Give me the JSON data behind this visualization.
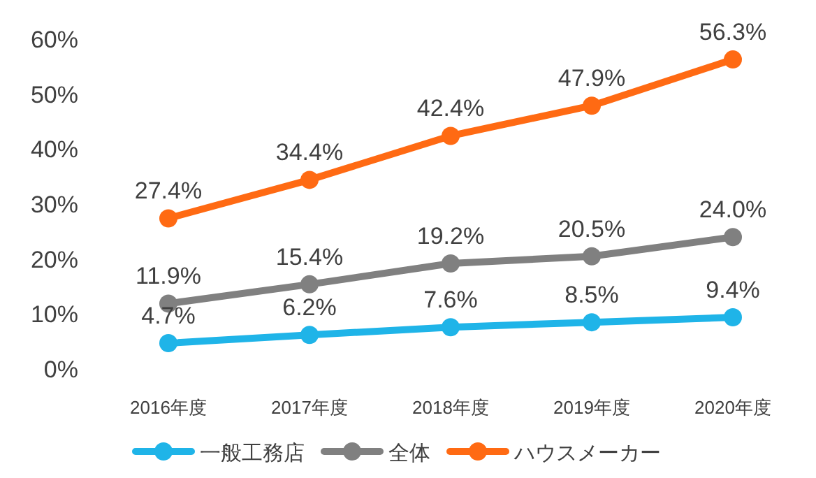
{
  "chart_data": {
    "type": "line",
    "categories": [
      "2016年度",
      "2017年度",
      "2018年度",
      "2019年度",
      "2020年度"
    ],
    "series": [
      {
        "name": "一般工務店",
        "color": "#1fb4e8",
        "values": [
          4.7,
          6.2,
          7.6,
          8.5,
          9.4
        ],
        "value_labels": [
          "4.7%",
          "6.2%",
          "7.6%",
          "8.5%",
          "9.4%"
        ]
      },
      {
        "name": "全体",
        "color": "#808080",
        "values": [
          11.9,
          15.4,
          19.2,
          20.5,
          24.0
        ],
        "value_labels": [
          "11.9%",
          "15.4%",
          "19.2%",
          "20.5%",
          "24.0%"
        ]
      },
      {
        "name": "ハウスメーカー",
        "color": "#ff6a13",
        "values": [
          27.4,
          34.4,
          42.4,
          47.9,
          56.3
        ],
        "value_labels": [
          "27.4%",
          "34.4%",
          "42.4%",
          "47.9%",
          "56.3%"
        ]
      }
    ],
    "ylim": [
      0,
      60
    ],
    "yticks": [
      {
        "value": 0,
        "label": "0%"
      },
      {
        "value": 10,
        "label": "10%"
      },
      {
        "value": 20,
        "label": "20%"
      },
      {
        "value": 30,
        "label": "30%"
      },
      {
        "value": 40,
        "label": "40%"
      },
      {
        "value": 50,
        "label": "50%"
      },
      {
        "value": 60,
        "label": "60%"
      }
    ],
    "marker": "circle",
    "line_style": "solid",
    "legend": "bottom",
    "grid": false
  }
}
